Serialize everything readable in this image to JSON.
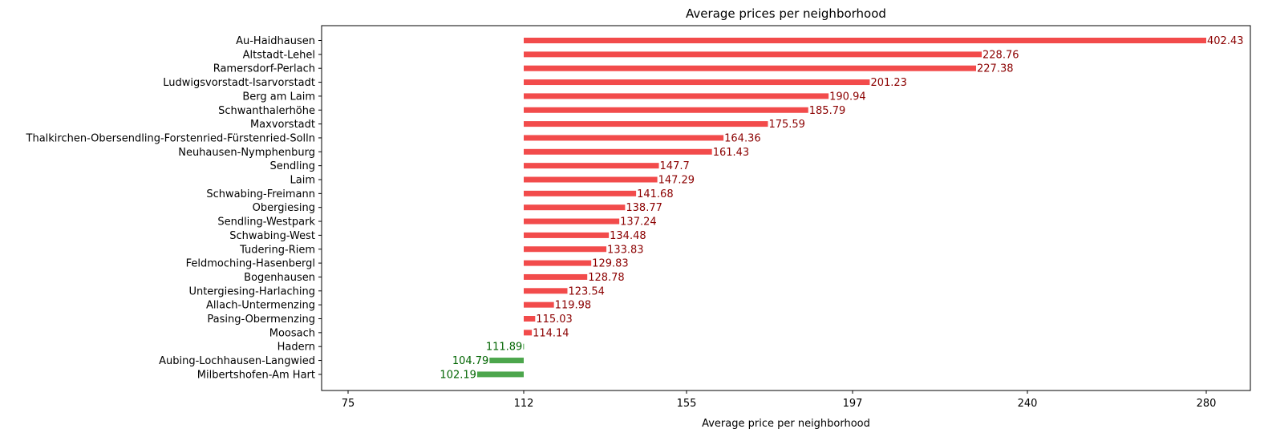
{
  "chart_data": {
    "type": "bar",
    "orientation": "horizontal",
    "title": "Average prices per neighborhood",
    "xlabel": "Average price per neighborhood",
    "ylabel": "",
    "baseline": 112,
    "xticks": [
      75,
      112,
      155,
      197,
      240,
      280
    ],
    "grid": false,
    "colors": {
      "above": "#f24b4b",
      "above_label": "#8b0000",
      "below": "#4ca64c",
      "below_label": "#006400"
    },
    "categories": [
      "Au-Haidhausen",
      "Altstadt-Lehel",
      "Ramersdorf-Perlach",
      "Ludwigsvorstadt-Isarvorstadt",
      "Berg am Laim",
      "Schwanthalerhöhe",
      "Maxvorstadt",
      "Thalkirchen-Obersendling-Forstenried-Fürstenried-Solln",
      "Neuhausen-Nymphenburg",
      "Sendling",
      "Laim",
      "Schwabing-Freimann",
      "Obergiesing",
      "Sendling-Westpark",
      "Schwabing-West",
      "Tudering-Riem",
      "Feldmoching-Hasenbergl",
      "Bogenhausen",
      "Untergiesing-Harlaching",
      "Allach-Untermenzing",
      "Pasing-Obermenzing",
      "Moosach",
      "Hadern",
      "Aubing-Lochhausen-Langwied",
      "Milbertshofen-Am Hart"
    ],
    "values": [
      402.43,
      228.76,
      227.38,
      201.23,
      190.94,
      185.79,
      175.59,
      164.36,
      161.43,
      147.7,
      147.29,
      141.68,
      138.77,
      137.24,
      134.48,
      133.83,
      129.83,
      128.78,
      123.54,
      119.98,
      115.03,
      114.14,
      111.89,
      104.79,
      102.19
    ],
    "value_labels": [
      "402.43",
      "228.76",
      "227.38",
      "201.23",
      "190.94",
      "185.79",
      "175.59",
      "164.36",
      "161.43",
      "147.7",
      "147.29",
      "141.68",
      "138.77",
      "137.24",
      "134.48",
      "133.83",
      "129.83",
      "128.78",
      "123.54",
      "119.98",
      "115.03",
      "114.14",
      "111.89",
      "104.79",
      "102.19"
    ]
  }
}
